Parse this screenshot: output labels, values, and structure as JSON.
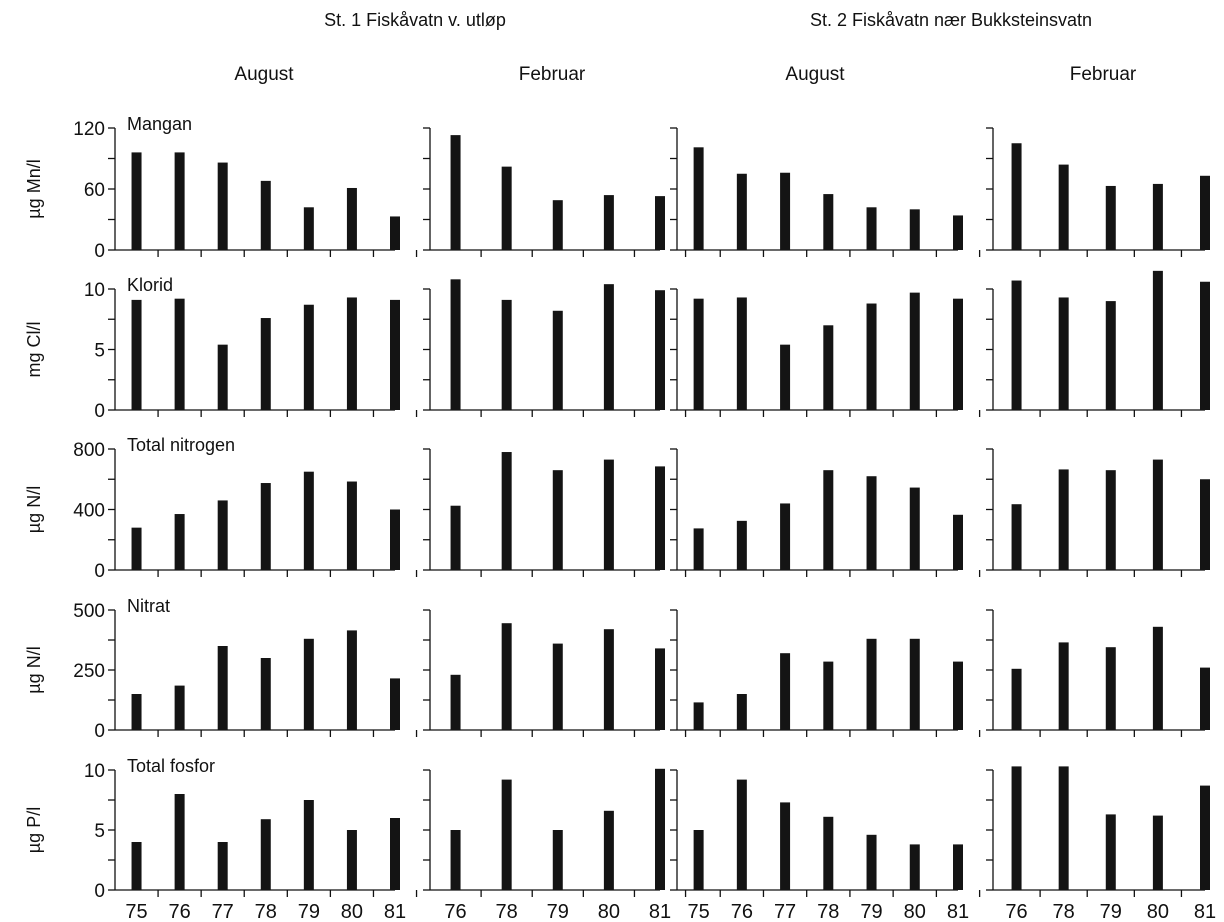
{
  "stations": [
    {
      "title": "St. 1  Fiskåvatn v. utløp"
    },
    {
      "title": "St. 2  Fiskåvatn nær Bukksteinsvatn"
    }
  ],
  "columns": [
    {
      "season": "August",
      "station": 0,
      "years": [
        "75",
        "76",
        "77",
        "78",
        "79",
        "80",
        "81"
      ]
    },
    {
      "season": "Februar",
      "station": 0,
      "years": [
        "76",
        "78",
        "79",
        "80",
        "81"
      ]
    },
    {
      "season": "August",
      "station": 1,
      "years": [
        "75",
        "76",
        "77",
        "78",
        "79",
        "80",
        "81"
      ]
    },
    {
      "season": "Februar",
      "station": 1,
      "years": [
        "76",
        "78",
        "79",
        "80",
        "81"
      ]
    }
  ],
  "rows": [
    {
      "label": "Mangan",
      "ylabel": "µg Mn/l",
      "ylim": [
        0,
        120
      ],
      "yticks": [
        "0",
        "60",
        "120"
      ],
      "minor_ticks": 4
    },
    {
      "label": "Klorid",
      "ylabel": "mg Cl/l",
      "ylim": [
        0,
        10
      ],
      "yticks": [
        "0",
        "5",
        "10"
      ],
      "minor_ticks": 4
    },
    {
      "label": "Total nitrogen",
      "ylabel": "µg N/l",
      "ylim": [
        0,
        800
      ],
      "yticks": [
        "0",
        "400",
        "800"
      ],
      "minor_ticks": 4
    },
    {
      "label": "Nitrat",
      "ylabel": "µg N/l",
      "ylim": [
        0,
        500
      ],
      "yticks": [
        "0",
        "250",
        "500"
      ],
      "minor_ticks": 4
    },
    {
      "label": "Total fosfor",
      "ylabel": "µg P/l",
      "ylim": [
        0,
        10
      ],
      "yticks": [
        "0",
        "5",
        "10"
      ],
      "minor_ticks": 4
    }
  ],
  "chart_data": {
    "type": "bar",
    "layout": "grid 5 rows x 4 columns",
    "values": [
      [
        [
          96,
          96,
          86,
          68,
          42,
          61,
          33
        ],
        [
          113,
          82,
          49,
          54,
          53
        ],
        [
          101,
          75,
          76,
          55,
          42,
          40,
          34
        ],
        [
          105,
          84,
          63,
          65,
          73
        ]
      ],
      [
        [
          9.1,
          9.2,
          5.4,
          7.6,
          8.7,
          9.3,
          9.1
        ],
        [
          10.8,
          9.1,
          8.2,
          10.4,
          9.9
        ],
        [
          9.2,
          9.3,
          5.4,
          7.0,
          8.8,
          9.7,
          9.2
        ],
        [
          10.7,
          9.3,
          9.0,
          11.5,
          10.6
        ]
      ],
      [
        [
          280,
          370,
          460,
          575,
          650,
          585,
          400
        ],
        [
          425,
          780,
          660,
          730,
          685
        ],
        [
          275,
          325,
          440,
          660,
          620,
          545,
          365
        ],
        [
          435,
          665,
          660,
          730,
          600
        ]
      ],
      [
        [
          150,
          185,
          350,
          300,
          380,
          415,
          215
        ],
        [
          230,
          445,
          360,
          420,
          340
        ],
        [
          115,
          150,
          320,
          285,
          380,
          380,
          285
        ],
        [
          255,
          365,
          345,
          430,
          260
        ]
      ],
      [
        [
          4.0,
          8.0,
          4.0,
          5.9,
          7.5,
          5.0,
          6.0
        ],
        [
          5.0,
          9.2,
          5.0,
          6.6,
          10.1
        ],
        [
          5.0,
          9.2,
          7.3,
          6.1,
          4.6,
          3.8,
          3.8
        ],
        [
          10.3,
          10.3,
          6.3,
          6.2,
          8.7
        ]
      ]
    ]
  }
}
